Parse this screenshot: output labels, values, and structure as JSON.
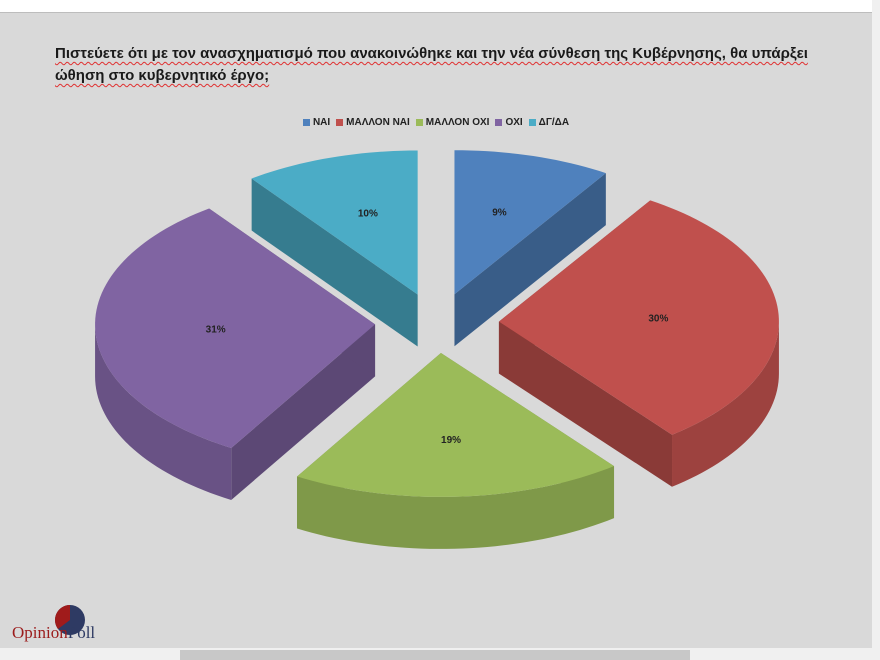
{
  "chart_data": {
    "type": "pie",
    "style": "3d-exploded",
    "title": "Πιστεύετε ότι με τον ανασχηματισμό που ανακοινώθηκε και την νέα σύνθεση της Κυβέρνησης, θα υπάρξει ώθηση στο κυβερνητικό έργο;",
    "legend_position": "top",
    "categories": [
      "ΝΑΙ",
      "ΜΑΛΛΟΝ ΝΑΙ",
      "ΜΑΛΛΟΝ ΟΧΙ",
      "ΟΧΙ",
      "ΔΓ/ΔΑ"
    ],
    "values": [
      9,
      30,
      19,
      31,
      10
    ],
    "data_labels": [
      "9%",
      "30%",
      "19%",
      "31%",
      "10%"
    ],
    "colors": [
      "#4f81bd",
      "#c0504d",
      "#9bbb59",
      "#8064a2",
      "#4bacc6"
    ]
  },
  "logo": {
    "text_part1": "Opinion",
    "text_part2": "Poll"
  }
}
